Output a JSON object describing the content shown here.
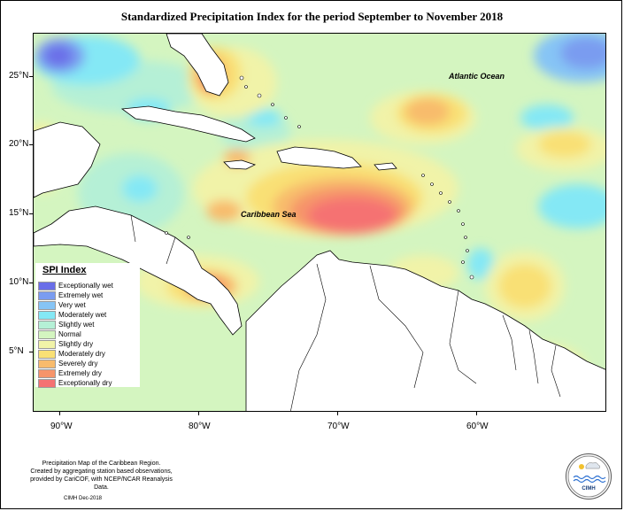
{
  "title": "Standardized Precipitation Index for the period September to November 2018",
  "map": {
    "type": "choropleth-contour",
    "region": "Caribbean",
    "lat_labels": [
      "25°N",
      "20°N",
      "15°N",
      "10°N",
      "5°N"
    ],
    "lon_labels": [
      "90°W",
      "80°W",
      "70°W",
      "60°W"
    ],
    "lat_range": [
      0,
      28
    ],
    "lon_range": [
      -92,
      -50
    ],
    "sea_labels": {
      "atlantic": "Atlantic Ocean",
      "caribbean": "Caribbean Sea"
    }
  },
  "legend": {
    "title": "SPI Index",
    "items": [
      {
        "label": "Exceptionally wet",
        "color": "#6a6ee8"
      },
      {
        "label": "Extremely wet",
        "color": "#7a9cf0"
      },
      {
        "label": "Very wet",
        "color": "#86c4f5"
      },
      {
        "label": "Moderately wet",
        "color": "#84e8f5"
      },
      {
        "label": "Slightly wet",
        "color": "#b5f0d6"
      },
      {
        "label": "Normal",
        "color": "#d4f5c0"
      },
      {
        "label": "Slightly dry",
        "color": "#f1f3a8"
      },
      {
        "label": "Moderately dry",
        "color": "#f9e075"
      },
      {
        "label": "Severely dry",
        "color": "#f8bb6c"
      },
      {
        "label": "Extremely dry",
        "color": "#f6946a"
      },
      {
        "label": "Exceptionally dry",
        "color": "#f57272"
      }
    ]
  },
  "credit": {
    "line1": "Precipitation Map of the Caribbean Region.",
    "line2": "Created by aggregating station based observations,",
    "line3": "provided by CariCOF, with NCEP/NCAR Reanalysis Data."
  },
  "date": "CIMH Dec-2018",
  "logo_text": "CIMH"
}
